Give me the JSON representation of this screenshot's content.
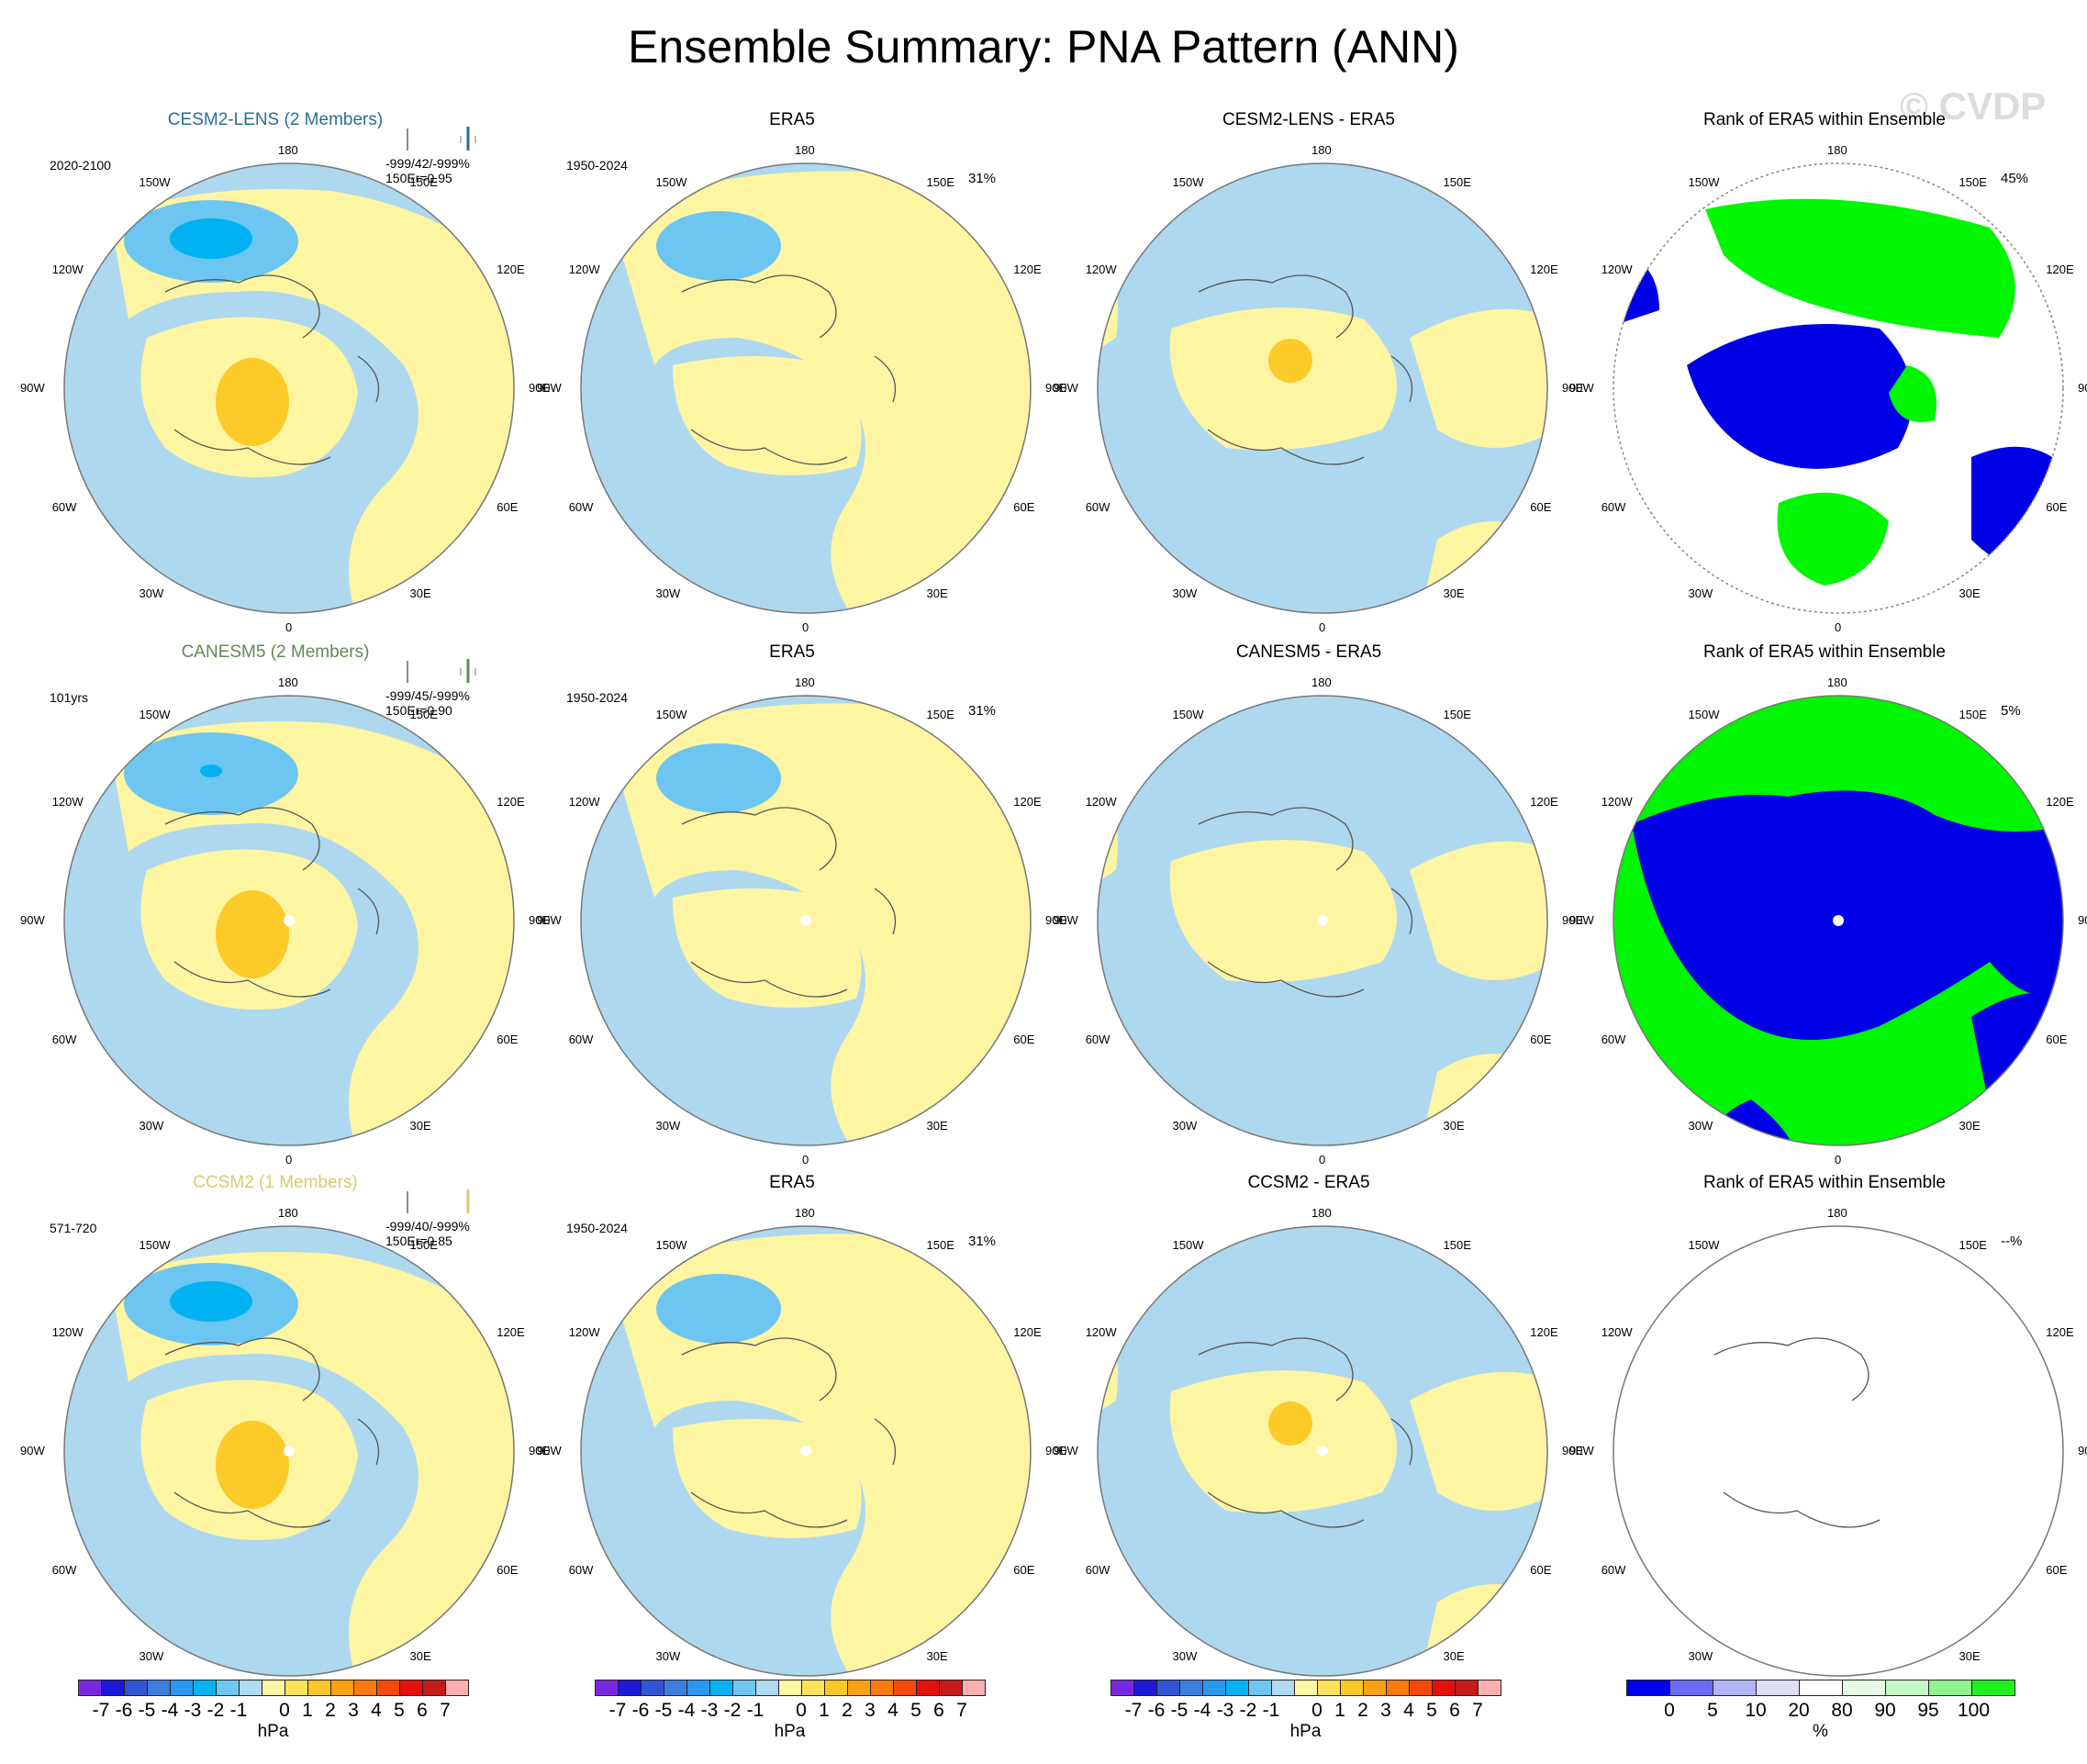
{
  "title": "Ensemble Summary: PNA Pattern (ANN)",
  "watermark": "© CVDP",
  "colors": {
    "ocean_neg1": "#aed8ef",
    "neg2": "#6cc6f1",
    "neg3": "#00b2f2",
    "pos1": "#fdf5a2",
    "pos2": "#fccb2a",
    "rank_low": "#0000e6",
    "rank_high": "#00f500",
    "cesm_title": "#2b6f91",
    "canesm_title": "#5f8a52",
    "ccsm_title": "#d9cb6f"
  },
  "lon_labels": {
    "top": "180",
    "bottom": "0",
    "left": [
      "150W",
      "120W",
      "90W",
      "60W",
      "30W"
    ],
    "right": [
      "150E",
      "120E",
      "90E",
      "60E",
      "30E"
    ]
  },
  "rows": [
    {
      "model_title": "CESM2-LENS (2 Members)",
      "model_period": "2020-2100",
      "model_stats": "-999/42/-999%",
      "model_er": "150Er=0.95",
      "obs_title": "ERA5",
      "obs_period": "1950-2024",
      "obs_pct": "31%",
      "diff_title": "CESM2-LENS - ERA5",
      "rank_title": "Rank of ERA5 within Ensemble",
      "rank_pct": "45%"
    },
    {
      "model_title": "CANESM5 (2 Members)",
      "model_period": "101yrs",
      "model_stats": "-999/45/-999%",
      "model_er": "150Er=0.90",
      "obs_title": "ERA5",
      "obs_period": "1950-2024",
      "obs_pct": "31%",
      "diff_title": "CANESM5 - ERA5",
      "rank_title": "Rank of ERA5 within Ensemble",
      "rank_pct": "5%"
    },
    {
      "model_title": "CCSM2 (1 Members)",
      "model_period": "571-720",
      "model_stats": "-999/40/-999%",
      "model_er": "150Er=0.85",
      "obs_title": "ERA5",
      "obs_period": "1950-2024",
      "obs_pct": "31%",
      "diff_title": "CCSM2 - ERA5",
      "rank_title": "Rank of ERA5 within Ensemble",
      "rank_pct": "--%"
    }
  ],
  "colorbar_hpa": {
    "colors": [
      "#7a28e0",
      "#1b18d9",
      "#3155d3",
      "#3d7de0",
      "#2a97f0",
      "#07b2f4",
      "#6ec7f1",
      "#afdaef",
      "#fff6a6",
      "#fde25c",
      "#fcc72b",
      "#fca212",
      "#fa7a10",
      "#f34a0e",
      "#e4100d",
      "#c41a1a",
      "#fcb0b0"
    ],
    "ticks": [
      "-7",
      "-6",
      "-5",
      "-4",
      "-3",
      "-2",
      "-1",
      "0",
      "1",
      "2",
      "3",
      "4",
      "5",
      "6",
      "7"
    ],
    "unit": "hPa"
  },
  "colorbar_rank": {
    "colors": [
      "#0000f0",
      "#6b6bf6",
      "#b2b2f6",
      "#dedef8",
      "#ffffff",
      "#e6fbe6",
      "#c6f7c6",
      "#8ef58e",
      "#1ef01e"
    ],
    "ticks": [
      "0",
      "5",
      "10",
      "20",
      "80",
      "90",
      "95",
      "100"
    ],
    "unit": "%"
  }
}
